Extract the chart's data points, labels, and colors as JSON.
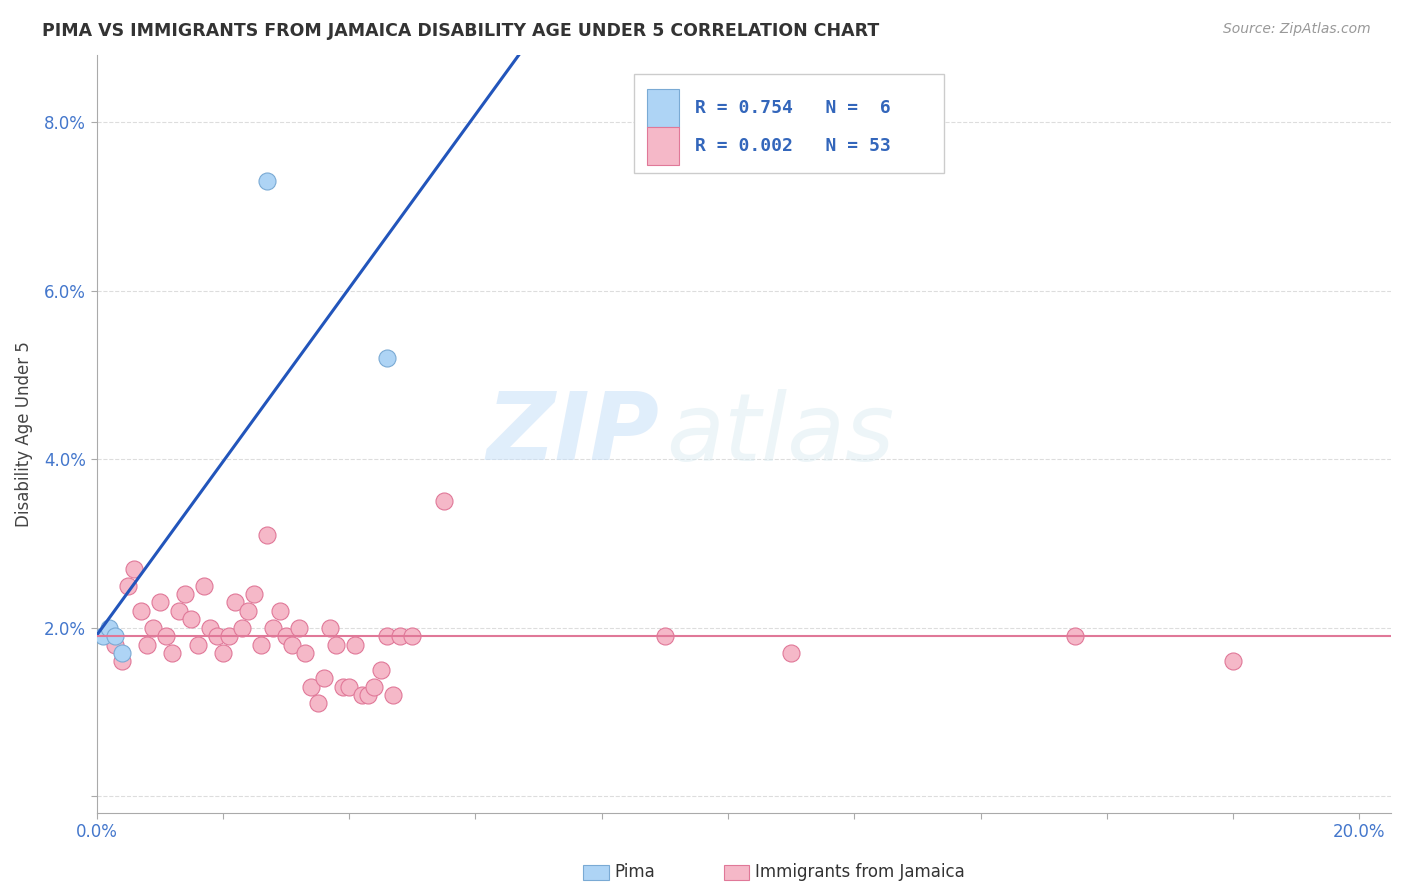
{
  "title": "PIMA VS IMMIGRANTS FROM JAMAICA DISABILITY AGE UNDER 5 CORRELATION CHART",
  "source": "Source: ZipAtlas.com",
  "ylabel": "Disability Age Under 5",
  "xlim": [
    0.0,
    0.205
  ],
  "ylim": [
    -0.002,
    0.088
  ],
  "xticks": [
    0.0,
    0.02,
    0.04,
    0.06,
    0.08,
    0.1,
    0.12,
    0.14,
    0.16,
    0.18,
    0.2
  ],
  "yticks": [
    0.0,
    0.02,
    0.04,
    0.06,
    0.08
  ],
  "ytick_labels": [
    "",
    "2.0%",
    "4.0%",
    "6.0%",
    "8.0%"
  ],
  "xtick_labels": [
    "0.0%",
    "",
    "",
    "",
    "",
    "",
    "",
    "",
    "",
    "",
    "20.0%"
  ],
  "watermark_zip": "ZIP",
  "watermark_atlas": "atlas",
  "pima_color": "#aed4f5",
  "pima_edge_color": "#7aaad4",
  "jamaica_color": "#f5b8c8",
  "jamaica_edge_color": "#e07898",
  "pima_line_color": "#2255bb",
  "jamaica_line_color": "#e07898",
  "pima_scatter_x": [
    0.001,
    0.002,
    0.003,
    0.004,
    0.027,
    0.046
  ],
  "pima_scatter_y": [
    0.019,
    0.02,
    0.019,
    0.017,
    0.073,
    0.052
  ],
  "jamaica_scatter_x": [
    0.002,
    0.003,
    0.004,
    0.005,
    0.006,
    0.007,
    0.008,
    0.009,
    0.01,
    0.011,
    0.012,
    0.013,
    0.014,
    0.015,
    0.016,
    0.017,
    0.018,
    0.019,
    0.02,
    0.021,
    0.022,
    0.023,
    0.024,
    0.025,
    0.026,
    0.027,
    0.028,
    0.029,
    0.03,
    0.031,
    0.032,
    0.033,
    0.034,
    0.035,
    0.036,
    0.037,
    0.038,
    0.039,
    0.04,
    0.041,
    0.042,
    0.043,
    0.044,
    0.045,
    0.046,
    0.047,
    0.048,
    0.05,
    0.055,
    0.09,
    0.11,
    0.155,
    0.18
  ],
  "jamaica_scatter_y": [
    0.019,
    0.018,
    0.016,
    0.025,
    0.027,
    0.022,
    0.018,
    0.02,
    0.023,
    0.019,
    0.017,
    0.022,
    0.024,
    0.021,
    0.018,
    0.025,
    0.02,
    0.019,
    0.017,
    0.019,
    0.023,
    0.02,
    0.022,
    0.024,
    0.018,
    0.031,
    0.02,
    0.022,
    0.019,
    0.018,
    0.02,
    0.017,
    0.013,
    0.011,
    0.014,
    0.02,
    0.018,
    0.013,
    0.013,
    0.018,
    0.012,
    0.012,
    0.013,
    0.015,
    0.019,
    0.012,
    0.019,
    0.019,
    0.035,
    0.019,
    0.017,
    0.019,
    0.016
  ],
  "background_color": "#ffffff",
  "grid_color": "#dddddd",
  "title_color": "#333333",
  "source_color": "#999999",
  "tick_color": "#4477cc",
  "ylabel_color": "#444444",
  "legend_R_pima": "R = 0.754",
  "legend_N_pima": "N =  6",
  "legend_R_jamaica": "R = 0.002",
  "legend_N_jamaica": "N = 53"
}
